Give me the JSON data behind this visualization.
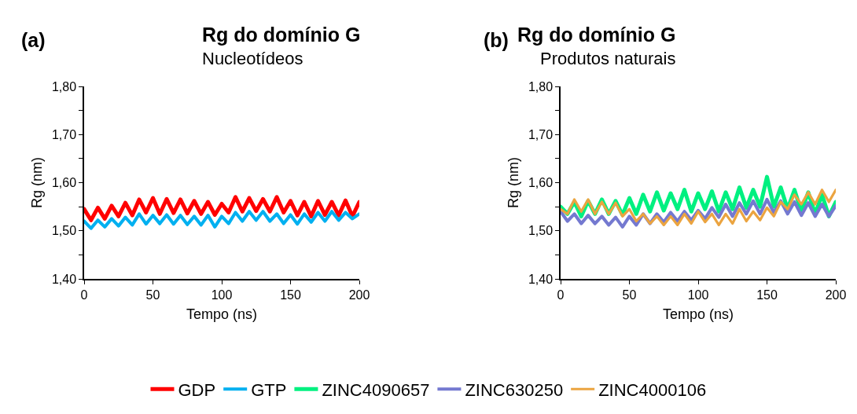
{
  "chart_data": [
    {
      "type": "line",
      "title": "Rg do domínio G",
      "subtitle": "Nucleotídeos",
      "annotations": [
        "(a)"
      ],
      "xlabel": "Tempo (ns)",
      "ylabel": "Rg (nm)",
      "x": [
        0,
        5,
        10,
        15,
        20,
        25,
        30,
        35,
        40,
        45,
        50,
        55,
        60,
        65,
        70,
        75,
        80,
        85,
        90,
        95,
        100,
        105,
        110,
        115,
        120,
        125,
        130,
        135,
        140,
        145,
        150,
        155,
        160,
        165,
        170,
        175,
        180,
        185,
        190,
        195,
        200
      ],
      "series": [
        {
          "name": "GDP",
          "color": "#ff0000",
          "values": [
            1.545,
            1.522,
            1.548,
            1.525,
            1.552,
            1.53,
            1.558,
            1.532,
            1.565,
            1.538,
            1.568,
            1.535,
            1.566,
            1.537,
            1.565,
            1.536,
            1.562,
            1.535,
            1.56,
            1.533,
            1.556,
            1.538,
            1.57,
            1.54,
            1.568,
            1.541,
            1.566,
            1.54,
            1.57,
            1.538,
            1.562,
            1.532,
            1.56,
            1.53,
            1.562,
            1.533,
            1.56,
            1.532,
            1.563,
            1.53,
            1.56
          ]
        },
        {
          "name": "GTP",
          "color": "#00b0f0",
          "values": [
            1.52,
            1.505,
            1.522,
            1.508,
            1.525,
            1.51,
            1.528,
            1.512,
            1.535,
            1.514,
            1.532,
            1.515,
            1.533,
            1.514,
            1.532,
            1.513,
            1.53,
            1.512,
            1.532,
            1.508,
            1.53,
            1.515,
            1.538,
            1.52,
            1.54,
            1.522,
            1.54,
            1.52,
            1.535,
            1.515,
            1.533,
            1.514,
            1.535,
            1.518,
            1.538,
            1.52,
            1.54,
            1.522,
            1.538,
            1.525,
            1.535
          ]
        }
      ],
      "xlim": [
        0,
        200
      ],
      "xticks": [
        0,
        50,
        100,
        150,
        200
      ],
      "ylim": [
        1.4,
        1.8
      ],
      "yticks": [
        {
          "value": 1.4,
          "label": "1,40"
        },
        {
          "value": 1.45,
          "label": null
        },
        {
          "value": 1.5,
          "label": "1,50"
        },
        {
          "value": 1.55,
          "label": null
        },
        {
          "value": 1.6,
          "label": "1,60"
        },
        {
          "value": 1.65,
          "label": null
        },
        {
          "value": 1.7,
          "label": "1,70"
        },
        {
          "value": 1.75,
          "label": null
        },
        {
          "value": 1.8,
          "label": "1,80"
        }
      ],
      "legend": "bottom",
      "marker": "none",
      "line_style": "solid"
    },
    {
      "type": "line",
      "title": "Rg do domínio G",
      "subtitle": "Produtos naturais",
      "annotations": [
        "(b)"
      ],
      "xlabel": "Tempo (ns)",
      "ylabel": "Rg (nm)",
      "x": [
        0,
        5,
        10,
        15,
        20,
        25,
        30,
        35,
        40,
        45,
        50,
        55,
        60,
        65,
        70,
        75,
        80,
        85,
        90,
        95,
        100,
        105,
        110,
        115,
        120,
        125,
        130,
        135,
        140,
        145,
        150,
        155,
        160,
        165,
        170,
        175,
        180,
        185,
        190,
        195,
        200
      ],
      "series": [
        {
          "name": "ZINC4090657",
          "color": "#00f080",
          "values": [
            1.55,
            1.535,
            1.56,
            1.53,
            1.562,
            1.535,
            1.565,
            1.535,
            1.562,
            1.533,
            1.568,
            1.535,
            1.575,
            1.54,
            1.58,
            1.542,
            1.578,
            1.545,
            1.585,
            1.54,
            1.578,
            1.545,
            1.582,
            1.54,
            1.58,
            1.545,
            1.59,
            1.548,
            1.585,
            1.55,
            1.612,
            1.55,
            1.59,
            1.545,
            1.585,
            1.54,
            1.58,
            1.535,
            1.575,
            1.53,
            1.56
          ]
        },
        {
          "name": "ZINC630250",
          "color": "#7479d0",
          "values": [
            1.54,
            1.52,
            1.535,
            1.515,
            1.532,
            1.515,
            1.53,
            1.512,
            1.528,
            1.508,
            1.53,
            1.512,
            1.535,
            1.515,
            1.535,
            1.518,
            1.538,
            1.52,
            1.54,
            1.522,
            1.542,
            1.525,
            1.548,
            1.528,
            1.555,
            1.53,
            1.558,
            1.535,
            1.562,
            1.535,
            1.565,
            1.538,
            1.562,
            1.535,
            1.56,
            1.532,
            1.558,
            1.53,
            1.555,
            1.53,
            1.552
          ]
        },
        {
          "name": "ZINC4000106",
          "color": "#eba440",
          "values": [
            1.545,
            1.535,
            1.565,
            1.54,
            1.565,
            1.535,
            1.56,
            1.535,
            1.558,
            1.53,
            1.545,
            1.52,
            1.535,
            1.515,
            1.53,
            1.512,
            1.53,
            1.512,
            1.535,
            1.515,
            1.54,
            1.518,
            1.535,
            1.512,
            1.535,
            1.515,
            1.545,
            1.52,
            1.54,
            1.522,
            1.548,
            1.53,
            1.56,
            1.545,
            1.575,
            1.555,
            1.58,
            1.555,
            1.585,
            1.56,
            1.585
          ]
        }
      ],
      "xlim": [
        0,
        200
      ],
      "xticks": [
        0,
        50,
        100,
        150,
        200
      ],
      "ylim": [
        1.4,
        1.8
      ],
      "yticks": [
        {
          "value": 1.4,
          "label": "1,40"
        },
        {
          "value": 1.45,
          "label": null
        },
        {
          "value": 1.5,
          "label": "1,50"
        },
        {
          "value": 1.55,
          "label": null
        },
        {
          "value": 1.6,
          "label": "1,60"
        },
        {
          "value": 1.65,
          "label": null
        },
        {
          "value": 1.7,
          "label": "1,70"
        },
        {
          "value": 1.75,
          "label": null
        },
        {
          "value": 1.8,
          "label": "1,80"
        }
      ],
      "legend": "bottom",
      "marker": "none",
      "line_style": "solid"
    }
  ]
}
